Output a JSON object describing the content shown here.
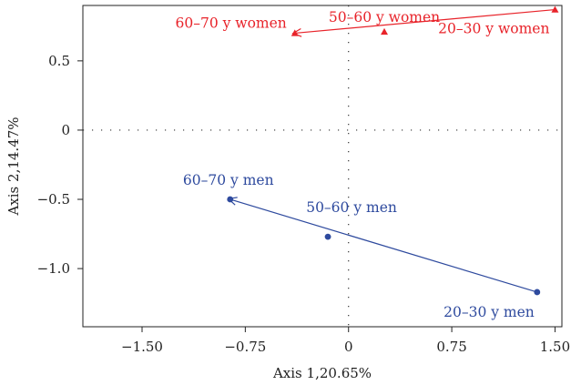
{
  "chart_data": {
    "type": "scatter",
    "xlabel": "Axis 1,20.65%",
    "ylabel": "Axis 2,14.47%",
    "xlim": [
      -1.93,
      1.55
    ],
    "ylim": [
      -1.42,
      0.9
    ],
    "xticks": [
      -1.5,
      -0.75,
      0,
      0.75,
      1.5
    ],
    "xtick_labels": [
      "−1.50",
      "−0.75",
      "0",
      "0.75",
      "1.50"
    ],
    "yticks": [
      0.5,
      0,
      -0.5,
      -1.0
    ],
    "ytick_labels": [
      "0.5",
      "0",
      "−0.5",
      "−1.0"
    ],
    "reference_lines": {
      "x": 0,
      "y": 0,
      "style": "dotted"
    },
    "series": [
      {
        "marker": "triangle",
        "color": "#e8232a",
        "points": [
          {
            "x": 1.5,
            "y": 0.87,
            "label": "20–30 y women"
          },
          {
            "x": 0.26,
            "y": 0.71,
            "label": "50–60 y women"
          },
          {
            "x": -0.39,
            "y": 0.7,
            "label": "60–70 y women"
          }
        ],
        "arrow": {
          "from": 0,
          "to": 2
        }
      },
      {
        "marker": "circle",
        "color": "#2e4a9e",
        "points": [
          {
            "x": 1.37,
            "y": -1.17,
            "label": "20–30 y men"
          },
          {
            "x": -0.15,
            "y": -0.77,
            "label": "50–60 y men"
          },
          {
            "x": -0.86,
            "y": -0.5,
            "label": "60–70 y men"
          }
        ],
        "arrow": {
          "from": 0,
          "to": 2
        }
      }
    ]
  }
}
